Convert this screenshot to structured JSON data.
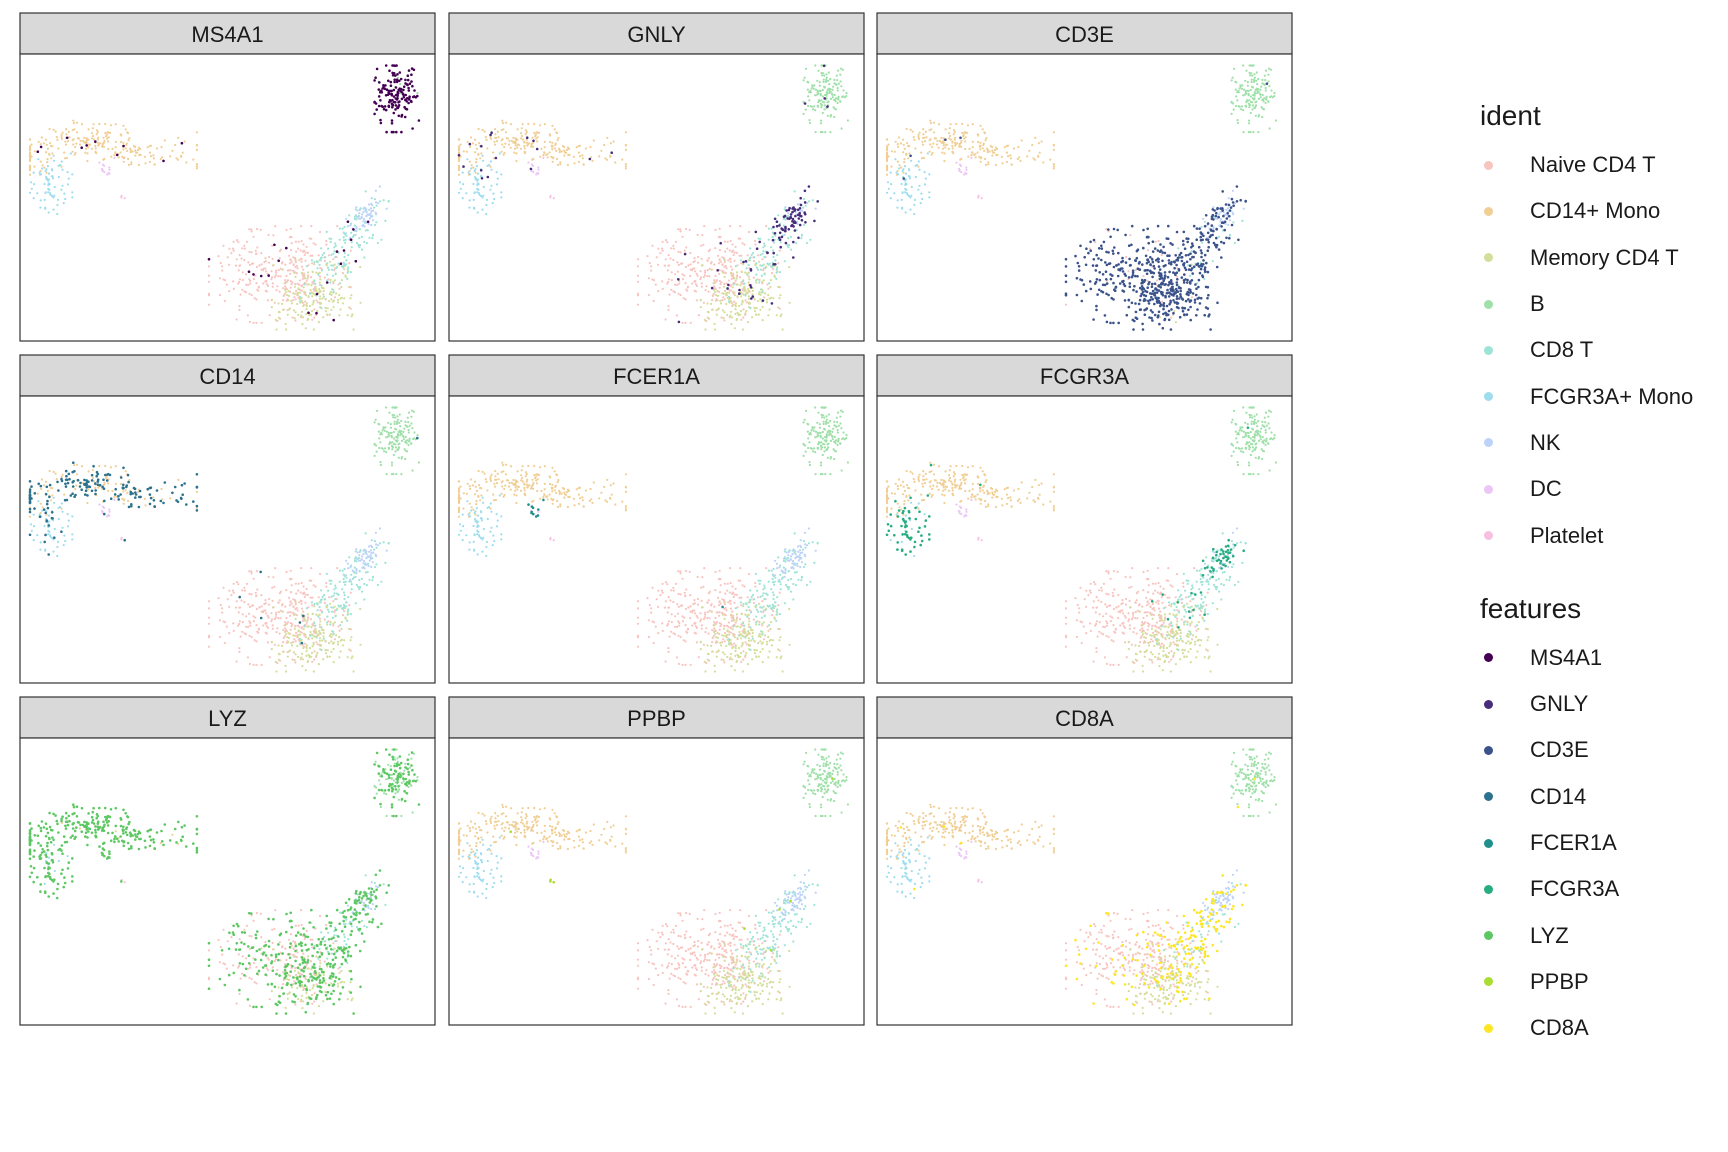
{
  "chart_data": {
    "type": "scatter",
    "title": "",
    "xlabel": "",
    "ylabel": "",
    "grid": false,
    "legend_position": "right",
    "panels": [
      "MS4A1",
      "GNLY",
      "CD3E",
      "CD14",
      "FCER1A",
      "FCGR3A",
      "LYZ",
      "PPBP",
      "CD8A"
    ],
    "ident_legend": {
      "title": "ident",
      "entries": [
        {
          "name": "Naive CD4 T",
          "color": "#F8C4C0"
        },
        {
          "name": "CD14+ Mono",
          "color": "#F0CE94"
        },
        {
          "name": "Memory CD4 T",
          "color": "#D4DE9A"
        },
        {
          "name": "B",
          "color": "#9EE0A8"
        },
        {
          "name": "CD8 T",
          "color": "#9EE4D6"
        },
        {
          "name": "FCGR3A+ Mono",
          "color": "#9EDDEE"
        },
        {
          "name": "NK",
          "color": "#BCD2F8"
        },
        {
          "name": "DC",
          "color": "#ECC6F6"
        },
        {
          "name": "Platelet",
          "color": "#F8C0E0"
        }
      ]
    },
    "features_legend": {
      "title": "features",
      "entries": [
        {
          "name": "MS4A1",
          "color": "#440154"
        },
        {
          "name": "GNLY",
          "color": "#472D7B"
        },
        {
          "name": "CD3E",
          "color": "#3B528B"
        },
        {
          "name": "CD14",
          "color": "#2C728E"
        },
        {
          "name": "FCER1A",
          "color": "#21908C"
        },
        {
          "name": "FCGR3A",
          "color": "#27AD81"
        },
        {
          "name": "LYZ",
          "color": "#5DC863"
        },
        {
          "name": "PPBP",
          "color": "#AADC32"
        },
        {
          "name": "CD8A",
          "color": "#FDE725"
        }
      ]
    },
    "clusters": [
      {
        "ident": "B",
        "center": [
          0.92,
          0.87
        ],
        "spread": [
          0.025,
          0.06
        ],
        "n": 160
      },
      {
        "ident": "CD14+ Mono",
        "center": [
          0.16,
          0.68
        ],
        "spread": [
          0.12,
          0.05
        ],
        "n": 260
      },
      {
        "ident": "FCGR3A+ Mono",
        "center": [
          0.06,
          0.55
        ],
        "spread": [
          0.025,
          0.05
        ],
        "n": 70
      },
      {
        "ident": "DC",
        "center": [
          0.2,
          0.6
        ],
        "spread": [
          0.015,
          0.02
        ],
        "n": 14
      },
      {
        "ident": "Platelet",
        "center": [
          0.24,
          0.5
        ],
        "spread": [
          0.004,
          0.005
        ],
        "n": 3
      },
      {
        "ident": "Naive CD4 T",
        "center": [
          0.63,
          0.22
        ],
        "spread": [
          0.08,
          0.08
        ],
        "n": 330
      },
      {
        "ident": "Memory CD4 T",
        "center": [
          0.72,
          0.14
        ],
        "spread": [
          0.05,
          0.06
        ],
        "n": 180
      },
      {
        "ident": "CD8 T",
        "center": [
          0.79,
          0.32
        ],
        "spread": [
          0.05,
          0.07
        ],
        "n": 150
      },
      {
        "ident": "NK",
        "center": [
          0.84,
          0.43
        ],
        "spread": [
          0.025,
          0.03
        ],
        "n": 60
      }
    ],
    "highlights": {
      "MS4A1": {
        "B": 0.95,
        "other": 0.03
      },
      "GNLY": {
        "NK": 0.85,
        "CD8 T": 0.25,
        "other": 0.03
      },
      "CD3E": {
        "Naive CD4 T": 0.9,
        "Memory CD4 T": 0.9,
        "CD8 T": 0.9,
        "NK": 0.3,
        "other": 0.02
      },
      "CD14": {
        "CD14+ Mono": 0.65,
        "FCGR3A+ Mono": 0.2,
        "other": 0.01
      },
      "FCER1A": {
        "DC": 0.6,
        "other": 0.005
      },
      "FCGR3A": {
        "FCGR3A+ Mono": 0.85,
        "NK": 0.8,
        "CD8 T": 0.1,
        "other": 0.01
      },
      "LYZ": {
        "CD14+ Mono": 0.95,
        "FCGR3A+ Mono": 0.9,
        "DC": 0.9,
        "B": 0.6,
        "Naive CD4 T": 0.5,
        "Memory CD4 T": 0.5,
        "CD8 T": 0.5,
        "NK": 0.5,
        "other": 0.4
      },
      "PPBP": {
        "Platelet": 1.0,
        "other": 0.005
      },
      "CD8A": {
        "CD8 T": 0.7,
        "Naive CD4 T": 0.15,
        "Memory CD4 T": 0.1,
        "other": 0.01
      }
    }
  }
}
